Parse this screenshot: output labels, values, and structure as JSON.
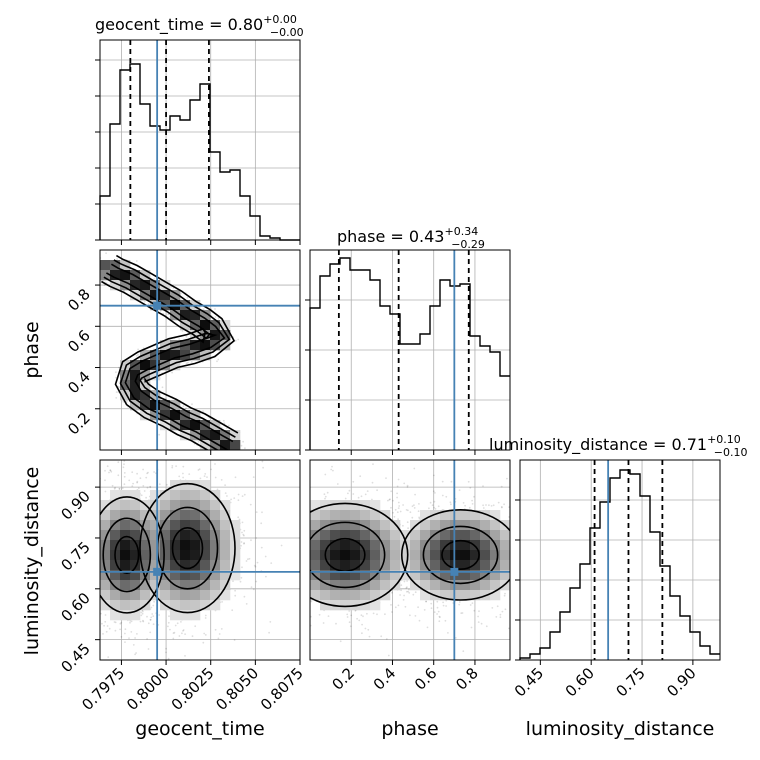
{
  "colors": {
    "truth": "#4682b4",
    "ink": "#000000",
    "grid": "#b0b0b0"
  },
  "chart_data": {
    "type": "corner",
    "parameters": [
      "geocent_time",
      "phase",
      "luminosity_distance"
    ],
    "titles": [
      {
        "text": "geocent_time = 0.80",
        "plus": "+0.00",
        "minus": "−0.00"
      },
      {
        "text": "phase = 0.43",
        "plus": "+0.34",
        "minus": "−0.29"
      },
      {
        "text": "luminosity_distance = 0.71",
        "plus": "+0.10",
        "minus": "−0.10"
      }
    ],
    "ranges": [
      [
        0.7963,
        0.8075
      ],
      [
        0.0,
        0.97
      ],
      [
        0.39,
        0.98
      ]
    ],
    "ticks": [
      [
        0.7975,
        0.8,
        0.8025,
        0.805,
        0.8075
      ],
      [
        0.2,
        0.4,
        0.6,
        0.8
      ],
      [
        0.45,
        0.6,
        0.75,
        0.9
      ]
    ],
    "tick_labels": [
      [
        "0.7975",
        "0.8000",
        "0.8025",
        "0.8050",
        "0.8075"
      ],
      [
        "0.2",
        "0.4",
        "0.6",
        "0.8"
      ],
      [
        "0.45",
        "0.60",
        "0.75",
        "0.90"
      ]
    ],
    "truths": [
      0.7995,
      0.7,
      0.65
    ],
    "quantiles": [
      [
        0.798,
        0.8,
        0.8024
      ],
      [
        0.14,
        0.43,
        0.77
      ],
      [
        0.61,
        0.71,
        0.81
      ]
    ],
    "histograms": [
      {
        "edges_start": 0.7963,
        "bin_width": 0.00056,
        "counts": [
          0.22,
          0.58,
          0.85,
          0.88,
          0.68,
          0.57,
          0.55,
          0.62,
          0.6,
          0.7,
          0.78,
          0.44,
          0.34,
          0.35,
          0.22,
          0.12,
          0.02,
          0.01,
          0.0,
          0.0
        ]
      },
      {
        "edges_start": 0.0,
        "bin_width": 0.0485,
        "counts": [
          0.71,
          0.87,
          0.93,
          0.96,
          0.9,
          0.9,
          0.85,
          0.72,
          0.68,
          0.53,
          0.53,
          0.58,
          0.72,
          0.85,
          0.82,
          0.83,
          0.57,
          0.52,
          0.49,
          0.37
        ]
      },
      {
        "edges_start": 0.39,
        "bin_width": 0.0295,
        "counts": [
          0.01,
          0.03,
          0.06,
          0.14,
          0.24,
          0.36,
          0.48,
          0.66,
          0.79,
          0.91,
          0.95,
          0.93,
          0.82,
          0.64,
          0.47,
          0.32,
          0.22,
          0.14,
          0.07,
          0.03
        ]
      }
    ],
    "hist_yticks": [
      [
        0.0,
        0.18,
        0.36,
        0.54,
        0.72,
        0.9
      ],
      [
        0.0,
        0.25,
        0.5,
        0.75
      ],
      [
        0.0,
        0.2,
        0.4,
        0.6,
        0.8
      ]
    ],
    "hist2d": [
      {
        "x": "geocent_time",
        "y": "phase",
        "ridge_x": [
          0.7968,
          0.7972,
          0.798,
          0.7988,
          0.7996,
          0.8004,
          0.8012,
          0.802,
          0.8026,
          0.803,
          0.8024,
          0.8014,
          0.8004,
          0.7996,
          0.7988,
          0.7982,
          0.798,
          0.7984,
          0.7992,
          0.8002,
          0.801,
          0.8018,
          0.8024,
          0.803,
          0.8036
        ],
        "ridge_y": [
          0.88,
          0.86,
          0.83,
          0.79,
          0.75,
          0.71,
          0.66,
          0.62,
          0.58,
          0.55,
          0.52,
          0.49,
          0.47,
          0.44,
          0.41,
          0.38,
          0.33,
          0.27,
          0.22,
          0.18,
          0.14,
          0.11,
          0.08,
          0.05,
          0.02
        ]
      },
      {
        "x": "geocent_time",
        "y": "luminosity_distance",
        "centers": [
          [
            0.7978,
            0.7
          ],
          [
            0.8012,
            0.72
          ]
        ],
        "spread": [
          [
            0.0011,
            0.09
          ],
          [
            0.0014,
            0.1
          ]
        ]
      },
      {
        "x": "phase",
        "y": "luminosity_distance",
        "centers": [
          [
            0.17,
            0.7
          ],
          [
            0.73,
            0.7
          ]
        ],
        "spread": [
          [
            0.16,
            0.08
          ],
          [
            0.15,
            0.07
          ]
        ]
      }
    ]
  }
}
